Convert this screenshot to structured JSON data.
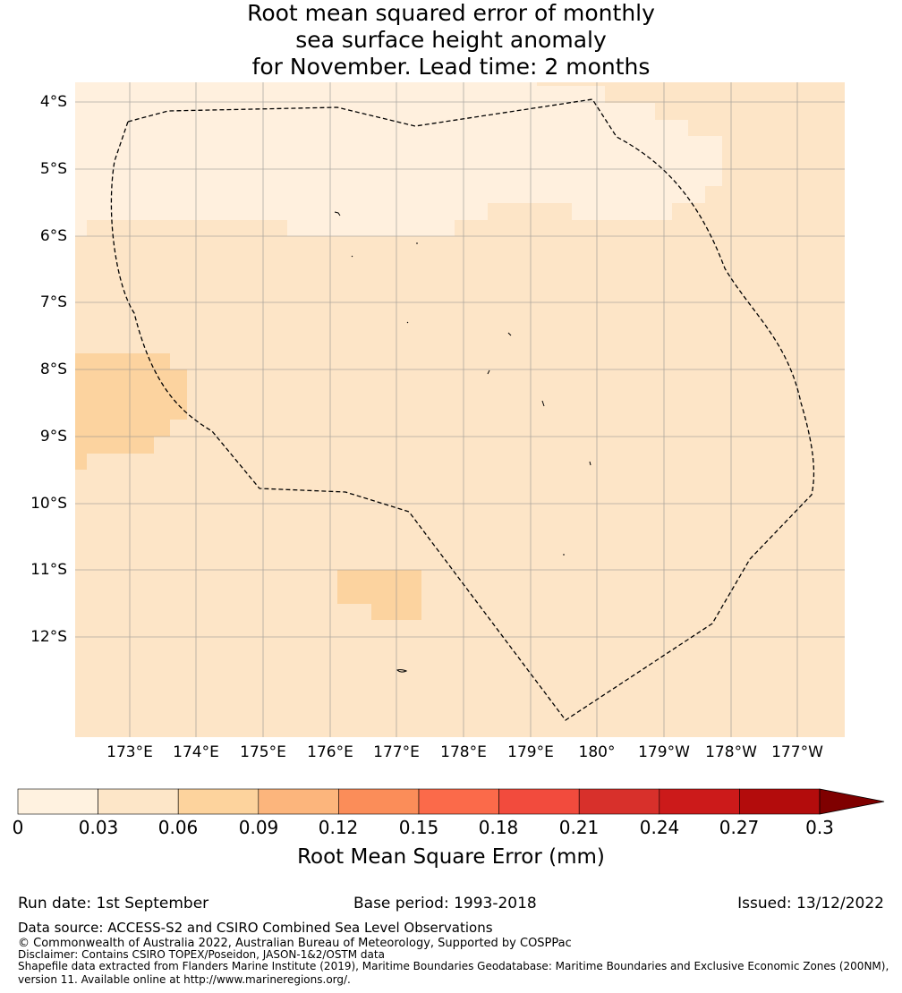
{
  "title_lines": [
    "Root mean squared error of monthly",
    "sea surface height anomaly",
    "for November. Lead time: 2 months"
  ],
  "map": {
    "lat_labels": [
      "4°S",
      "5°S",
      "6°S",
      "7°S",
      "8°S",
      "9°S",
      "10°S",
      "11°S",
      "12°S"
    ],
    "lon_labels": [
      "173°E",
      "174°E",
      "175°E",
      "176°E",
      "177°E",
      "178°E",
      "179°E",
      "180°",
      "179°W",
      "178°W",
      "177°W"
    ],
    "boundary_style": "dashed",
    "colors": {
      "bin_0": "#fff0de",
      "bin_1": "#fde5c7",
      "bin_2": "#fcd39f",
      "land_outline": "#000000",
      "grid": "#8c8c8c"
    }
  },
  "colorbar": {
    "ticks": [
      "0",
      "0.03",
      "0.06",
      "0.09",
      "0.12",
      "0.15",
      "0.18",
      "0.21",
      "0.24",
      "0.27",
      "0.3"
    ],
    "colors": [
      "#fff2e0",
      "#fde6c8",
      "#fdd39d",
      "#fcb57c",
      "#fb8d59",
      "#fb6a4a",
      "#f24b3d",
      "#d8302b",
      "#cc1a1a",
      "#b30c0c"
    ],
    "extend_color": "#7f0000",
    "label": "Root Mean Square Error (mm)"
  },
  "footer": {
    "run_date": "Run date: 1st September",
    "base_period": "Base period: 1993-2018",
    "issued": "Issued: 13/12/2022",
    "data_source": "Data source: ACCESS-S2 and CSIRO Combined Sea Level Observations",
    "copyright": "© Commonwealth of Australia 2022, Australian Bureau of Meteorology, Supported by COSPPac",
    "disclaimer": "Disclaimer: Contains CSIRO TOPEX/Poseidon, JASON-1&2/OSTM data",
    "shapefile_line1": "Shapefile data extracted from Flanders Marine Institute (2019), Maritime Boundaries Geodatabase: Maritime Boundaries and Exclusive Economic Zones (200NM),",
    "shapefile_line2": "version 11. Available online at http://www.marineregions.org/."
  }
}
